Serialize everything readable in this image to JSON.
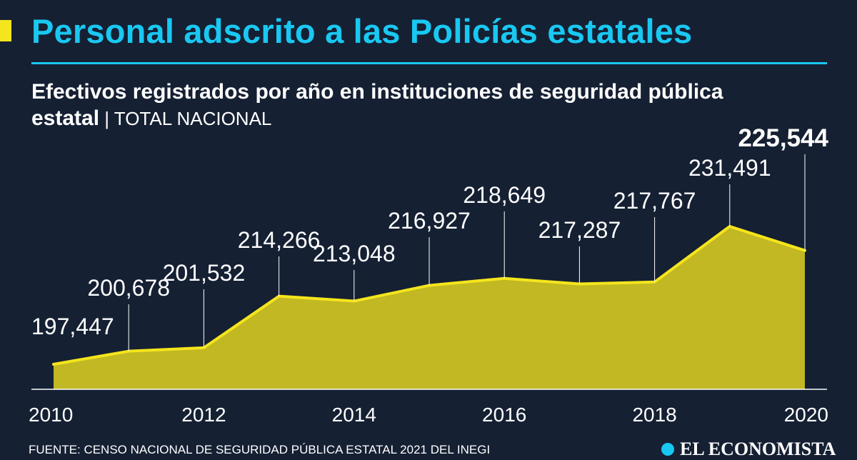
{
  "title": "Personal adscrito a las Policías estatales",
  "subtitle": {
    "strong": "Efectivos registrados por año en instituciones de seguridad pública estatal",
    "separator": " | ",
    "light": "TOTAL NACIONAL"
  },
  "source": "FUENTE: CENSO NACIONAL DE SEGURIDAD PÚBLICA ESTATAL 2021 DEL INEGI",
  "logo": {
    "text": "EL ECONOMISTA"
  },
  "colors": {
    "background": "#152033",
    "title": "#19c8f2",
    "area_fill": "#c1b823",
    "line": "#f5e51c",
    "text": "#ffffff"
  },
  "chart_data": {
    "type": "area",
    "x": [
      2010,
      2011,
      2012,
      2013,
      2014,
      2015,
      2016,
      2017,
      2018,
      2019,
      2020
    ],
    "values": [
      197447,
      200678,
      201532,
      214266,
      213048,
      216927,
      218649,
      217287,
      217767,
      231491,
      225544
    ],
    "labels": [
      "197,447",
      "200,678",
      "201,532",
      "214,266",
      "213,048",
      "216,927",
      "218,649",
      "217,287",
      "217,767",
      "231,491",
      "225,544"
    ],
    "highlight_label_index": 10,
    "x_ticks": [
      "2010",
      "2012",
      "2014",
      "2016",
      "2018",
      "2020"
    ],
    "ylim": [
      180000,
      236000
    ],
    "grid": false,
    "legend": "none"
  }
}
